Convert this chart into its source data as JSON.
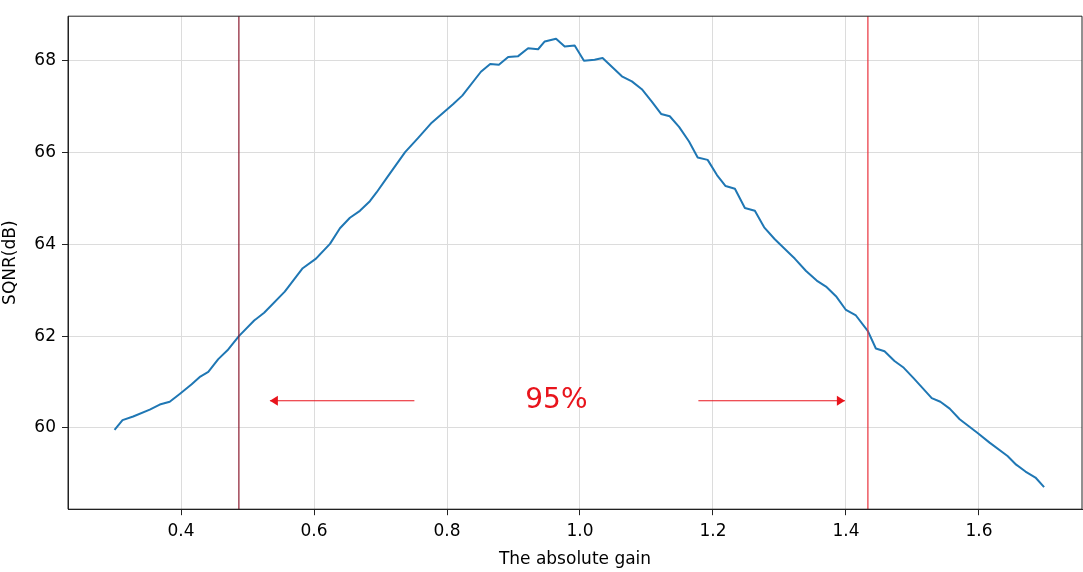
{
  "chart_data": {
    "type": "line",
    "xlabel": "The absolute gain",
    "ylabel": "SQNR(dB)",
    "xlim": [
      0.23,
      1.755
    ],
    "xticks": [
      {
        "value": 0.4,
        "label": "0.4"
      },
      {
        "value": 0.6,
        "label": "0.6"
      },
      {
        "value": 0.8,
        "label": "0.8"
      },
      {
        "value": 1.0,
        "label": "1.0"
      },
      {
        "value": 1.2,
        "label": "1.2"
      },
      {
        "value": 1.4,
        "label": "1.4"
      },
      {
        "value": 1.6,
        "label": "1.6"
      }
    ],
    "ylim": [
      58.23,
      68.97
    ],
    "yticks": [
      60,
      62,
      64,
      66,
      68
    ],
    "grid": true,
    "marker": "none",
    "line_style": "solid",
    "series": [
      {
        "color": "#1f77b4",
        "x": [
          0.3,
          0.312,
          0.328,
          0.353,
          0.368,
          0.383,
          0.398,
          0.416,
          0.429,
          0.441,
          0.456,
          0.471,
          0.487,
          0.51,
          0.525,
          0.556,
          0.583,
          0.603,
          0.624,
          0.639,
          0.654,
          0.669,
          0.684,
          0.694,
          0.71,
          0.737,
          0.756,
          0.777,
          0.809,
          0.823,
          0.851,
          0.865,
          0.878,
          0.892,
          0.907,
          0.922,
          0.937,
          0.947,
          0.964,
          0.977,
          0.992,
          1.006,
          1.022,
          1.034,
          1.063,
          1.078,
          1.093,
          1.108,
          1.122,
          1.135,
          1.149,
          1.164,
          1.177,
          1.192,
          1.206,
          1.219,
          1.233,
          1.248,
          1.263,
          1.277,
          1.293,
          1.323,
          1.34,
          1.356,
          1.37,
          1.385,
          1.4,
          1.415,
          1.433,
          1.445,
          1.458,
          1.473,
          1.487,
          1.502,
          1.529,
          1.542,
          1.556,
          1.571,
          1.598,
          1.616,
          1.643,
          1.656,
          1.67,
          1.685,
          1.698
        ],
        "values": [
          59.96,
          60.17,
          60.25,
          60.4,
          60.51,
          60.57,
          60.74,
          60.95,
          61.12,
          61.22,
          61.5,
          61.71,
          62.0,
          62.34,
          62.51,
          62.97,
          63.48,
          63.69,
          64.01,
          64.35,
          64.58,
          64.73,
          64.94,
          65.13,
          65.46,
          66.01,
          66.31,
          66.65,
          67.05,
          67.24,
          67.76,
          67.93,
          67.91,
          68.08,
          68.1,
          68.27,
          68.25,
          68.42,
          68.48,
          68.31,
          68.33,
          68.0,
          68.02,
          68.06,
          67.66,
          67.55,
          67.38,
          67.11,
          66.84,
          66.79,
          66.56,
          66.24,
          65.89,
          65.84,
          65.51,
          65.27,
          65.21,
          64.79,
          64.73,
          64.37,
          64.11,
          63.69,
          63.42,
          63.21,
          63.08,
          62.87,
          62.57,
          62.45,
          62.11,
          61.73,
          61.67,
          61.46,
          61.31,
          61.08,
          60.65,
          60.57,
          60.42,
          60.19,
          59.89,
          59.68,
          59.39,
          59.2,
          59.05,
          58.92,
          58.71
        ]
      }
    ],
    "ref_lines": [
      {
        "axis": "x",
        "value": 0.487,
        "color": "#8b1a2e"
      },
      {
        "axis": "x",
        "value": 1.433,
        "color": "#e8323c"
      }
    ],
    "annotations": [
      "95%"
    ]
  }
}
